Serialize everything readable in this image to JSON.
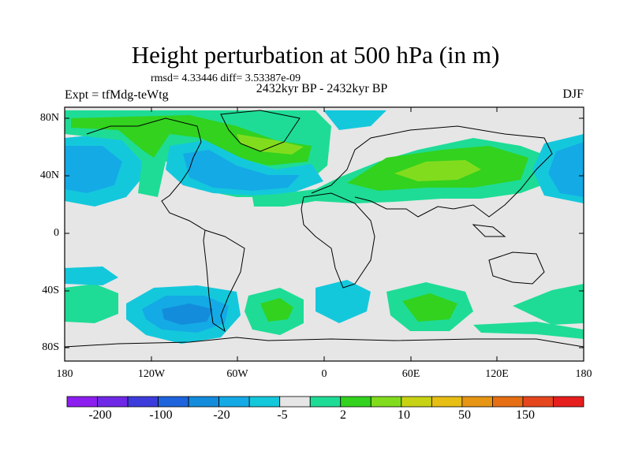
{
  "title": "Height perturbation at 500 hPa (in m)",
  "stats": "rmsd= 4.33446 diff= 3.53387e-09",
  "period": "2432kyr BP - 2432kyr BP",
  "experiment": "Expt = tfMdg-teWtg",
  "season": "DJF",
  "lat_labels": [
    "80N",
    "40N",
    "0",
    "40S",
    "80S"
  ],
  "lon_labels": [
    "180",
    "120W",
    "60W",
    "0",
    "60E",
    "120E",
    "180"
  ],
  "colorbar": {
    "colors": [
      "#8c1ef0",
      "#6e28e6",
      "#3c3cdc",
      "#1e64dc",
      "#148cdc",
      "#14aae6",
      "#14c8dc",
      "#e6e6e6",
      "#1edc96",
      "#32d21e",
      "#82dc1e",
      "#c8d214",
      "#e6be14",
      "#e69614",
      "#e66e14",
      "#e6461e",
      "#e61e1e"
    ],
    "labels": [
      "-200",
      "-100",
      "-20",
      "-5",
      "2",
      "10",
      "50",
      "150"
    ]
  },
  "chart_data": {
    "type": "filled contour map",
    "variable": "Height perturbation at 500 hPa",
    "units": "m",
    "season": "DJF",
    "lon_range": [
      -180,
      180
    ],
    "lat_range": [
      -90,
      90
    ],
    "regions": [
      {
        "name": "N Atlantic / E North America low",
        "lon": -60,
        "lat": 45,
        "level": "-5 to -20"
      },
      {
        "name": "Greenland high",
        "lon": -40,
        "lat": 65,
        "level": "10 to 20"
      },
      {
        "name": "NE Pacific low",
        "lon": -165,
        "lat": 40,
        "level": "-5 to -20"
      },
      {
        "name": "Central Asia high",
        "lon": 75,
        "lat": 45,
        "level": "10 to 20"
      },
      {
        "name": "NW Pacific low",
        "lon": 165,
        "lat": 45,
        "level": "-5 to -20"
      },
      {
        "name": "SE Pacific low",
        "lon": -100,
        "lat": -55,
        "level": "-5 to -20"
      },
      {
        "name": "S Atlantic high",
        "lon": -25,
        "lat": -50,
        "level": "2 to 10"
      },
      {
        "name": "S Indian Ocean high",
        "lon": 70,
        "lat": -50,
        "level": "2 to 10"
      }
    ]
  }
}
